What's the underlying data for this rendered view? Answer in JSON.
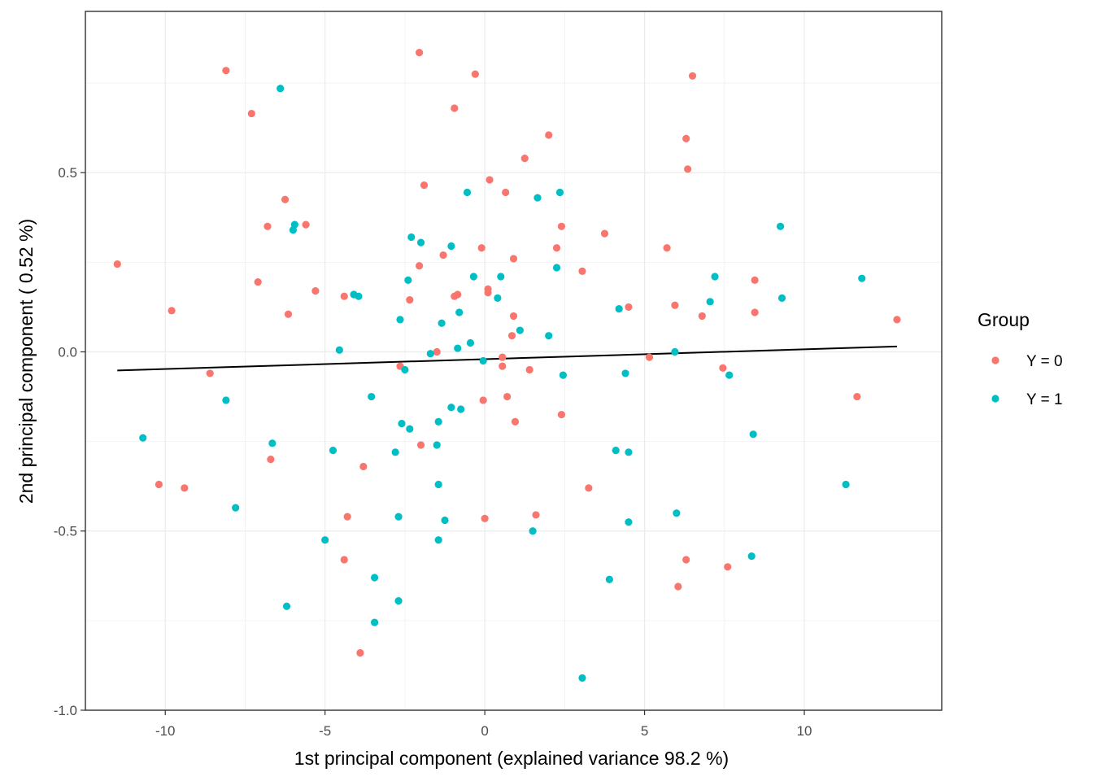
{
  "chart_data": {
    "type": "scatter",
    "xlabel": "1st principal component (explained variance 98.2 %)",
    "ylabel": "2nd principal component ( 0.52 %)",
    "xlim": [
      -12.5,
      14.3
    ],
    "ylim": [
      -1.0,
      0.95
    ],
    "x_ticks": [
      -10,
      -5,
      0,
      5,
      10
    ],
    "x_tick_labels": [
      "-10",
      "-5",
      "0",
      "5",
      "10"
    ],
    "y_ticks": [
      -1.0,
      -0.5,
      0.0,
      0.5
    ],
    "y_tick_labels": [
      "-1.0",
      "-0.5",
      "0.0",
      "0.5"
    ],
    "grid": true,
    "legend": {
      "title": "Group",
      "placement": "right",
      "entries": [
        {
          "label": "Y = 0",
          "color": "#F8766D"
        },
        {
          "label": "Y = 1",
          "color": "#00BFC4"
        }
      ]
    },
    "series": [
      {
        "name": "Y = 0",
        "color": "#F8766D",
        "points": [
          [
            -11.5,
            0.245
          ],
          [
            -9.8,
            0.115
          ],
          [
            -10.2,
            -0.37
          ],
          [
            -9.4,
            -0.38
          ],
          [
            -8.6,
            -0.06
          ],
          [
            -8.1,
            0.785
          ],
          [
            -7.3,
            0.665
          ],
          [
            -7.1,
            0.195
          ],
          [
            -6.8,
            0.35
          ],
          [
            -6.7,
            -0.3
          ],
          [
            -6.25,
            0.425
          ],
          [
            -6.15,
            0.105
          ],
          [
            -5.6,
            0.355
          ],
          [
            -5.3,
            0.17
          ],
          [
            -4.4,
            0.155
          ],
          [
            -4.3,
            -0.46
          ],
          [
            -4.4,
            -0.58
          ],
          [
            -3.8,
            -0.32
          ],
          [
            -3.9,
            -0.84
          ],
          [
            -2.65,
            -0.04
          ],
          [
            -2.35,
            0.145
          ],
          [
            -2.05,
            0.835
          ],
          [
            -2.05,
            0.24
          ],
          [
            -2.0,
            -0.26
          ],
          [
            -1.9,
            0.465
          ],
          [
            -1.5,
            0.0
          ],
          [
            -1.3,
            0.27
          ],
          [
            -0.95,
            0.155
          ],
          [
            -0.85,
            0.16
          ],
          [
            -0.95,
            0.68
          ],
          [
            -0.3,
            0.775
          ],
          [
            -0.1,
            0.29
          ],
          [
            -0.05,
            -0.135
          ],
          [
            0.0,
            -0.465
          ],
          [
            0.1,
            0.165
          ],
          [
            0.1,
            0.175
          ],
          [
            0.15,
            0.48
          ],
          [
            0.55,
            -0.015
          ],
          [
            0.55,
            -0.04
          ],
          [
            0.65,
            0.445
          ],
          [
            0.7,
            -0.125
          ],
          [
            0.85,
            0.045
          ],
          [
            0.9,
            0.1
          ],
          [
            0.9,
            0.26
          ],
          [
            0.95,
            -0.195
          ],
          [
            1.25,
            0.54
          ],
          [
            1.4,
            -0.05
          ],
          [
            1.6,
            -0.455
          ],
          [
            2.0,
            0.605
          ],
          [
            2.25,
            0.29
          ],
          [
            2.4,
            0.35
          ],
          [
            2.4,
            -0.175
          ],
          [
            3.05,
            0.225
          ],
          [
            3.25,
            -0.38
          ],
          [
            3.75,
            0.33
          ],
          [
            4.5,
            0.125
          ],
          [
            5.15,
            -0.015
          ],
          [
            5.7,
            0.29
          ],
          [
            5.95,
            0.13
          ],
          [
            6.05,
            -0.655
          ],
          [
            6.3,
            0.595
          ],
          [
            6.3,
            -0.58
          ],
          [
            6.35,
            0.51
          ],
          [
            6.5,
            0.77
          ],
          [
            6.8,
            0.1
          ],
          [
            7.45,
            -0.045
          ],
          [
            7.6,
            -0.6
          ],
          [
            8.45,
            0.2
          ],
          [
            8.45,
            0.11
          ],
          [
            11.65,
            -0.125
          ],
          [
            12.9,
            0.09
          ]
        ]
      },
      {
        "name": "Y = 1",
        "color": "#00BFC4",
        "points": [
          [
            -10.7,
            -0.24
          ],
          [
            -8.1,
            -0.135
          ],
          [
            -7.8,
            -0.435
          ],
          [
            -6.65,
            -0.255
          ],
          [
            -6.4,
            0.735
          ],
          [
            -6.2,
            -0.71
          ],
          [
            -6.0,
            0.34
          ],
          [
            -5.95,
            0.355
          ],
          [
            -5.0,
            -0.525
          ],
          [
            -4.75,
            -0.275
          ],
          [
            -4.55,
            0.005
          ],
          [
            -4.1,
            0.16
          ],
          [
            -3.95,
            0.155
          ],
          [
            -3.55,
            -0.125
          ],
          [
            -3.45,
            -0.63
          ],
          [
            -3.45,
            -0.755
          ],
          [
            -2.8,
            -0.28
          ],
          [
            -2.7,
            -0.46
          ],
          [
            -2.7,
            -0.695
          ],
          [
            -2.65,
            0.09
          ],
          [
            -2.6,
            -0.2
          ],
          [
            -2.5,
            -0.05
          ],
          [
            -2.4,
            0.2
          ],
          [
            -2.35,
            -0.215
          ],
          [
            -2.3,
            0.32
          ],
          [
            -2.0,
            0.305
          ],
          [
            -1.7,
            -0.005
          ],
          [
            -1.5,
            -0.26
          ],
          [
            -1.45,
            -0.195
          ],
          [
            -1.45,
            -0.37
          ],
          [
            -1.45,
            -0.525
          ],
          [
            -1.35,
            0.08
          ],
          [
            -1.25,
            -0.47
          ],
          [
            -1.05,
            0.295
          ],
          [
            -1.05,
            -0.155
          ],
          [
            -0.85,
            0.01
          ],
          [
            -0.8,
            0.11
          ],
          [
            -0.75,
            -0.16
          ],
          [
            -0.55,
            0.445
          ],
          [
            -0.45,
            0.025
          ],
          [
            -0.35,
            0.21
          ],
          [
            -0.05,
            -0.025
          ],
          [
            0.4,
            0.15
          ],
          [
            0.5,
            0.21
          ],
          [
            1.1,
            0.06
          ],
          [
            1.5,
            -0.5
          ],
          [
            1.65,
            0.43
          ],
          [
            2.0,
            0.045
          ],
          [
            2.25,
            0.235
          ],
          [
            2.35,
            0.445
          ],
          [
            2.45,
            -0.065
          ],
          [
            3.05,
            -0.91
          ],
          [
            3.9,
            -0.635
          ],
          [
            4.1,
            -0.275
          ],
          [
            4.2,
            0.12
          ],
          [
            4.4,
            -0.06
          ],
          [
            4.5,
            -0.28
          ],
          [
            4.5,
            -0.475
          ],
          [
            5.95,
            0.0
          ],
          [
            6.0,
            -0.45
          ],
          [
            7.05,
            0.14
          ],
          [
            7.2,
            0.21
          ],
          [
            7.65,
            -0.065
          ],
          [
            8.35,
            -0.57
          ],
          [
            8.4,
            -0.23
          ],
          [
            9.25,
            0.35
          ],
          [
            9.3,
            0.15
          ],
          [
            11.3,
            -0.37
          ],
          [
            11.8,
            0.205
          ]
        ]
      }
    ],
    "trend_line": {
      "x": [
        -11.5,
        12.9
      ],
      "y": [
        -0.052,
        0.015
      ],
      "color": "#000000"
    }
  }
}
